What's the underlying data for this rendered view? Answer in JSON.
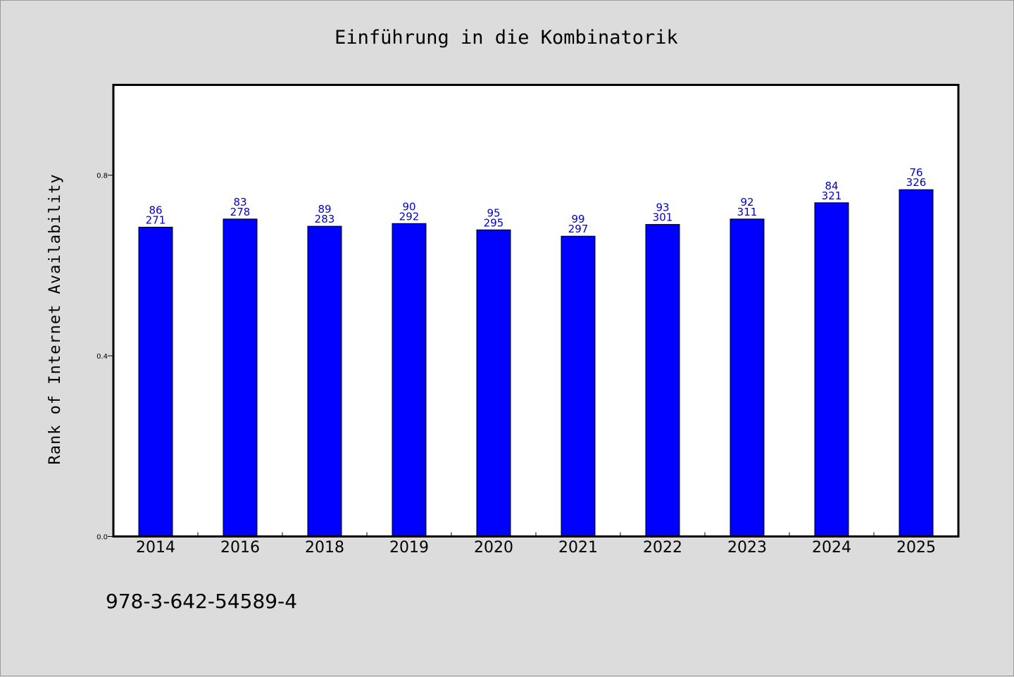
{
  "chart_data": {
    "type": "bar",
    "title": "Einführung in die Kombinatorik",
    "xlabel": "",
    "ylabel": "Rank of Internet Availability",
    "categories": [
      "2014",
      "2016",
      "2018",
      "2019",
      "2020",
      "2021",
      "2022",
      "2023",
      "2024",
      "2025"
    ],
    "values": [
      0.685,
      0.703,
      0.687,
      0.693,
      0.679,
      0.665,
      0.691,
      0.703,
      0.739,
      0.768
    ],
    "data_labels_top": [
      "86",
      "83",
      "89",
      "90",
      "95",
      "99",
      "93",
      "92",
      "84",
      "76"
    ],
    "data_labels_bottom": [
      "271",
      "278",
      "283",
      "292",
      "295",
      "297",
      "301",
      "311",
      "321",
      "326"
    ],
    "yticks": [
      "0.0",
      "0.4",
      "0.8"
    ],
    "ytick_values": [
      0.0,
      0.4,
      0.8
    ],
    "ylim": [
      0,
      1.0
    ],
    "bar_color": "#0000ff",
    "label_color": "#0000cc",
    "grid": false,
    "legend": "none"
  },
  "footer": {
    "isbn": "978-3-642-54589-4"
  }
}
